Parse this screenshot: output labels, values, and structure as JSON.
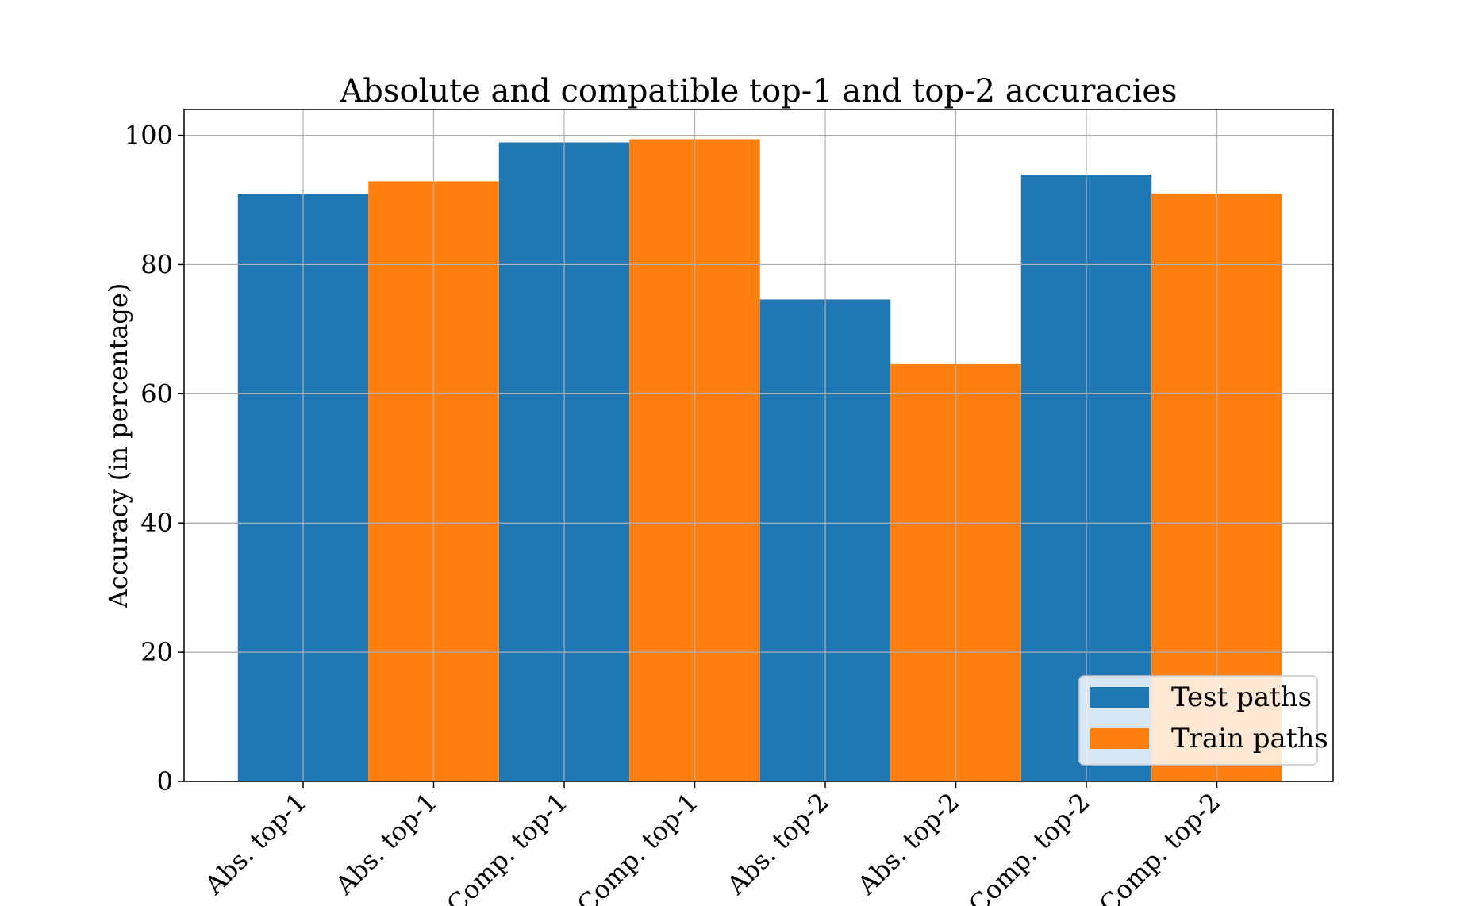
{
  "chart_data": {
    "type": "bar",
    "title": "Absolute and compatible top-1 and top-2 accuracies",
    "ylabel": "Accuracy (in percentage)",
    "xlabel": "",
    "ylim": [
      0,
      104
    ],
    "yticks": [
      0,
      20,
      40,
      60,
      80,
      100
    ],
    "grid": true,
    "legend_position": "lower-right",
    "categories": [
      "Abs. top-1",
      "Abs. top-1",
      "Comp. top-1",
      "Comp. top-1",
      "Abs. top-2",
      "Abs. top-2",
      "Comp. top-2",
      "Comp. top-2"
    ],
    "series": [
      {
        "name": "Test paths",
        "color": "#1f77b4",
        "values": [
          90.9,
          null,
          98.9,
          null,
          74.6,
          null,
          93.9,
          null
        ]
      },
      {
        "name": "Train paths",
        "color": "#ff7f0e",
        "values": [
          null,
          92.9,
          null,
          99.4,
          null,
          64.6,
          null,
          91.0
        ]
      }
    ]
  }
}
